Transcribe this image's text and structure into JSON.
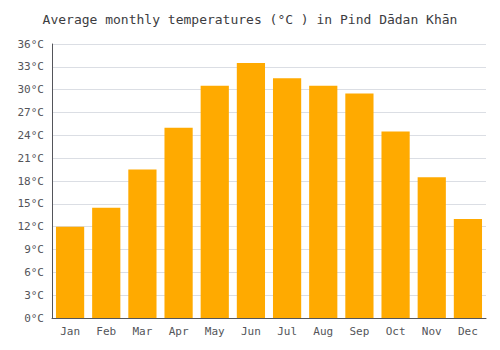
{
  "chart_data": {
    "type": "bar",
    "title": "Average monthly temperatures (°C ) in Pind Dādan Khān",
    "categories": [
      "Jan",
      "Feb",
      "Mar",
      "Apr",
      "May",
      "Jun",
      "Jul",
      "Aug",
      "Sep",
      "Oct",
      "Nov",
      "Dec"
    ],
    "values": [
      12.0,
      14.5,
      19.5,
      25.0,
      30.5,
      33.5,
      31.5,
      30.5,
      29.5,
      24.5,
      18.5,
      13.0
    ],
    "color": "#FFAA00",
    "ylim": [
      0,
      36
    ],
    "yticks": [
      {
        "value": 0,
        "label": "0°C"
      },
      {
        "value": 3,
        "label": "3°C"
      },
      {
        "value": 6,
        "label": "6°C"
      },
      {
        "value": 9,
        "label": "9°C"
      },
      {
        "value": 12,
        "label": "12°C"
      },
      {
        "value": 15,
        "label": "15°C"
      },
      {
        "value": 18,
        "label": "18°C"
      },
      {
        "value": 21,
        "label": "21°C"
      },
      {
        "value": 24,
        "label": "24°C"
      },
      {
        "value": 27,
        "label": "27°C"
      },
      {
        "value": 30,
        "label": "30°C"
      },
      {
        "value": 33,
        "label": "33°C"
      },
      {
        "value": 36,
        "label": "36°C"
      }
    ],
    "grid": true
  }
}
